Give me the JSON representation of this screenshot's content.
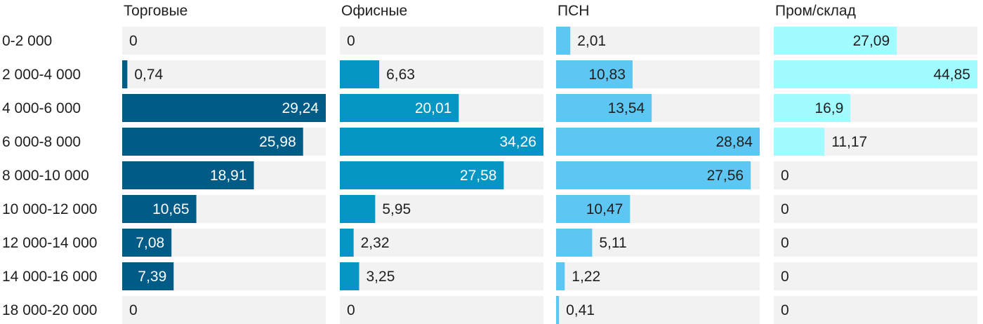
{
  "chart_data": {
    "type": "bar",
    "orientation": "horizontal",
    "layout": "small-multiples",
    "categories": [
      "0-2 000",
      "2 000-4 000",
      "4 000-6 000",
      "6 000-8 000",
      "8 000-10 000",
      "10 000-12 000",
      "12 000-14 000",
      "14 000-16 000",
      "18 000-20 000"
    ],
    "series": [
      {
        "name": "Торговые",
        "color": "#005b86",
        "values": [
          0,
          0.74,
          29.24,
          25.98,
          18.91,
          10.65,
          7.08,
          7.39,
          0
        ],
        "labels": [
          "0",
          "0,74",
          "29,24",
          "25,98",
          "18,91",
          "10,65",
          "7,08",
          "7,39",
          "0"
        ]
      },
      {
        "name": "Офисные",
        "color": "#0696c3",
        "values": [
          0,
          6.63,
          20.01,
          34.26,
          27.58,
          5.95,
          2.32,
          3.25,
          0
        ],
        "labels": [
          "0",
          "6,63",
          "20,01",
          "34,26",
          "27,58",
          "5,95",
          "2,32",
          "3,25",
          "0"
        ]
      },
      {
        "name": "ПСН",
        "color": "#5dc6f3",
        "values": [
          2.01,
          10.83,
          13.54,
          28.84,
          27.56,
          10.47,
          5.11,
          1.22,
          0.41
        ],
        "labels": [
          "2,01",
          "10,83",
          "13,54",
          "28,84",
          "27,56",
          "10,47",
          "5,11",
          "1,22",
          "0,41"
        ]
      },
      {
        "name": "Пром/склад",
        "color": "#a2fbfe",
        "values": [
          27.09,
          44.85,
          16.9,
          11.17,
          0,
          0,
          0,
          0,
          0
        ],
        "labels": [
          "27,09",
          "44,85",
          "16,9",
          "11,17",
          "0",
          "0",
          "0",
          "0",
          "0"
        ]
      }
    ],
    "background_track_color": "#f2f2f2",
    "grid": false,
    "legend": "none"
  }
}
